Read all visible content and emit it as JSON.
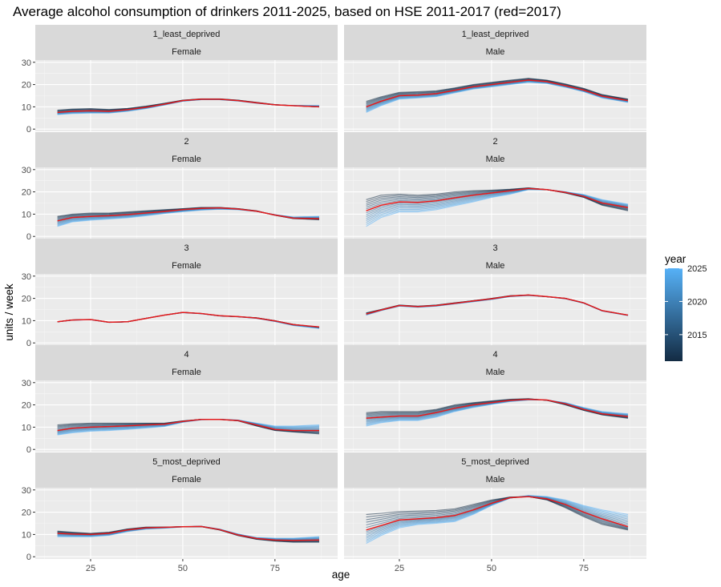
{
  "chart_data": {
    "type": "line",
    "title": "Average alcohol consumption of drinkers 2011-2025, based on HSE 2011-2017 (red=2017)",
    "xlabel": "age",
    "ylabel": "units / week",
    "xlim": [
      10,
      92
    ],
    "ylim": [
      -1,
      31
    ],
    "x_ticks": [
      25,
      50,
      75
    ],
    "y_ticks": [
      0,
      10,
      20,
      30
    ],
    "ages": [
      16,
      20,
      25,
      30,
      35,
      40,
      45,
      50,
      55,
      60,
      65,
      70,
      75,
      80,
      87
    ],
    "highlight_year": 2017,
    "highlight_color": "#e41a1c",
    "legend": {
      "title": "year",
      "position": "right",
      "ticks": [
        2015,
        2020,
        2025
      ],
      "range": [
        2011,
        2025
      ],
      "color_low": "#132B43",
      "color_high": "#56B1F7"
    },
    "panels": [
      {
        "deprivation": "1_least_deprived",
        "sex": "Female",
        "start": [
          8.5,
          9.0,
          9.2,
          8.8,
          9.3,
          10.3,
          11.6,
          13.0,
          13.6,
          13.6,
          13.0,
          12.0,
          11.0,
          10.5,
          10.0
        ],
        "mid": [
          7.5,
          8.0,
          8.2,
          8.0,
          8.7,
          9.8,
          11.2,
          12.8,
          13.4,
          13.4,
          12.8,
          11.8,
          10.9,
          10.5,
          10.0
        ],
        "end": [
          6.5,
          7.0,
          7.2,
          7.2,
          8.0,
          9.2,
          10.8,
          12.5,
          13.2,
          13.2,
          12.6,
          11.6,
          10.9,
          10.6,
          10.6
        ]
      },
      {
        "deprivation": "1_least_deprived",
        "sex": "Male",
        "start": [
          12.5,
          14.5,
          16.5,
          16.8,
          17.2,
          18.5,
          20.0,
          21.0,
          22.0,
          22.8,
          22.0,
          20.3,
          18.3,
          15.5,
          13.5
        ],
        "mid": [
          10.0,
          12.5,
          15.0,
          15.3,
          15.9,
          17.4,
          19.0,
          20.0,
          21.0,
          22.0,
          21.3,
          19.5,
          17.5,
          14.8,
          12.8
        ],
        "end": [
          7.5,
          10.5,
          13.5,
          14.0,
          14.6,
          16.3,
          18.0,
          19.0,
          20.0,
          21.0,
          20.5,
          18.8,
          16.8,
          14.0,
          12.0
        ]
      },
      {
        "deprivation": "2",
        "sex": "Female",
        "start": [
          9.0,
          10.0,
          10.5,
          10.5,
          11.0,
          11.5,
          12.0,
          12.5,
          13.0,
          13.0,
          12.5,
          11.5,
          9.5,
          8.0,
          7.5
        ],
        "mid": [
          7.0,
          8.5,
          9.0,
          9.3,
          9.8,
          10.5,
          11.2,
          12.0,
          12.6,
          12.8,
          12.3,
          11.3,
          9.6,
          8.2,
          8.0
        ],
        "end": [
          4.5,
          6.5,
          7.3,
          7.8,
          8.4,
          9.3,
          10.3,
          11.1,
          11.8,
          12.2,
          12.0,
          11.2,
          9.8,
          8.7,
          9.0
        ]
      },
      {
        "deprivation": "2",
        "sex": "Male",
        "start": [
          16.5,
          18.5,
          19.0,
          18.5,
          19.0,
          20.0,
          20.5,
          20.8,
          21.2,
          21.8,
          21.0,
          19.5,
          17.5,
          14.0,
          11.5
        ],
        "mid": [
          11.5,
          14.0,
          15.5,
          15.3,
          16.0,
          17.3,
          18.5,
          19.5,
          20.5,
          21.5,
          21.0,
          19.8,
          18.0,
          15.0,
          13.0
        ],
        "end": [
          4.5,
          8.5,
          11.0,
          11.0,
          12.0,
          13.8,
          15.5,
          17.5,
          19.0,
          21.0,
          21.0,
          20.0,
          18.8,
          16.5,
          14.5
        ]
      },
      {
        "deprivation": "3",
        "sex": "Female",
        "start": [
          9.5,
          10.3,
          10.5,
          9.3,
          9.5,
          11.0,
          12.5,
          13.7,
          13.2,
          12.2,
          11.8,
          11.3,
          10.0,
          8.3,
          7.0
        ],
        "mid": [
          9.5,
          10.3,
          10.5,
          9.3,
          9.5,
          11.0,
          12.5,
          13.7,
          13.2,
          12.2,
          11.8,
          11.2,
          9.9,
          8.2,
          7.2
        ],
        "end": [
          9.5,
          10.2,
          10.4,
          9.2,
          9.5,
          11.0,
          12.5,
          13.6,
          13.1,
          12.1,
          11.7,
          11.0,
          9.6,
          7.8,
          6.5
        ]
      },
      {
        "deprivation": "3",
        "sex": "Male",
        "start": [
          13.5,
          15.0,
          17.0,
          16.5,
          17.0,
          18.0,
          19.0,
          20.0,
          21.2,
          21.5,
          20.8,
          20.0,
          18.0,
          14.5,
          12.5
        ],
        "mid": [
          13.0,
          14.8,
          16.8,
          16.3,
          16.8,
          17.8,
          18.8,
          19.8,
          21.0,
          21.5,
          20.8,
          20.0,
          18.0,
          14.5,
          12.5
        ],
        "end": [
          12.5,
          14.5,
          16.5,
          16.0,
          16.5,
          17.5,
          18.5,
          19.5,
          20.8,
          21.3,
          20.7,
          19.8,
          17.8,
          14.3,
          12.3
        ]
      },
      {
        "deprivation": "4",
        "sex": "Female",
        "start": [
          11.0,
          11.5,
          11.8,
          11.8,
          11.8,
          11.8,
          11.8,
          12.8,
          13.5,
          13.5,
          12.8,
          10.5,
          8.5,
          7.8,
          7.0
        ],
        "mid": [
          8.5,
          9.5,
          10.0,
          10.3,
          10.6,
          11.0,
          11.3,
          12.6,
          13.5,
          13.5,
          13.0,
          11.0,
          9.0,
          8.5,
          8.5
        ],
        "end": [
          6.5,
          7.5,
          8.2,
          8.5,
          9.0,
          9.6,
          10.3,
          12.2,
          13.3,
          13.5,
          13.2,
          11.8,
          10.5,
          10.5,
          11.0
        ]
      },
      {
        "deprivation": "4",
        "sex": "Male",
        "start": [
          16.5,
          17.0,
          17.0,
          17.0,
          18.0,
          20.0,
          21.0,
          21.8,
          22.5,
          22.8,
          22.0,
          20.0,
          17.5,
          15.5,
          14.0
        ],
        "mid": [
          14.0,
          14.5,
          15.0,
          15.0,
          16.5,
          18.5,
          20.0,
          21.0,
          22.0,
          22.5,
          22.2,
          20.5,
          18.0,
          16.0,
          14.8
        ],
        "end": [
          10.5,
          12.0,
          13.0,
          13.0,
          14.5,
          17.0,
          18.8,
          20.2,
          21.5,
          22.2,
          22.2,
          21.0,
          18.8,
          17.0,
          16.0
        ]
      },
      {
        "deprivation": "5_most_deprived",
        "sex": "Female",
        "start": [
          11.5,
          11.0,
          10.5,
          11.0,
          12.5,
          13.3,
          13.3,
          13.5,
          13.5,
          12.0,
          9.5,
          7.8,
          7.0,
          6.5,
          6.5
        ],
        "mid": [
          10.5,
          10.2,
          10.0,
          10.5,
          12.0,
          13.0,
          13.2,
          13.5,
          13.6,
          12.2,
          9.8,
          8.2,
          7.5,
          7.3,
          7.5
        ],
        "end": [
          9.0,
          9.0,
          9.0,
          9.6,
          11.3,
          12.4,
          12.8,
          13.4,
          13.7,
          12.4,
          10.2,
          8.6,
          8.3,
          8.3,
          9.0
        ]
      },
      {
        "deprivation": "5_most_deprived",
        "sex": "Male",
        "start": [
          19.0,
          19.5,
          20.3,
          20.5,
          20.8,
          21.5,
          23.5,
          25.5,
          26.8,
          27.0,
          25.5,
          22.0,
          18.0,
          14.5,
          12.0
        ],
        "mid": [
          12.0,
          14.0,
          16.5,
          17.0,
          17.5,
          18.5,
          21.0,
          24.0,
          26.5,
          27.0,
          26.0,
          23.5,
          20.0,
          17.0,
          13.5
        ],
        "end": [
          6.0,
          9.5,
          13.0,
          14.5,
          15.0,
          15.8,
          19.0,
          23.0,
          26.3,
          27.5,
          27.0,
          25.5,
          23.0,
          21.0,
          19.0
        ]
      }
    ]
  }
}
